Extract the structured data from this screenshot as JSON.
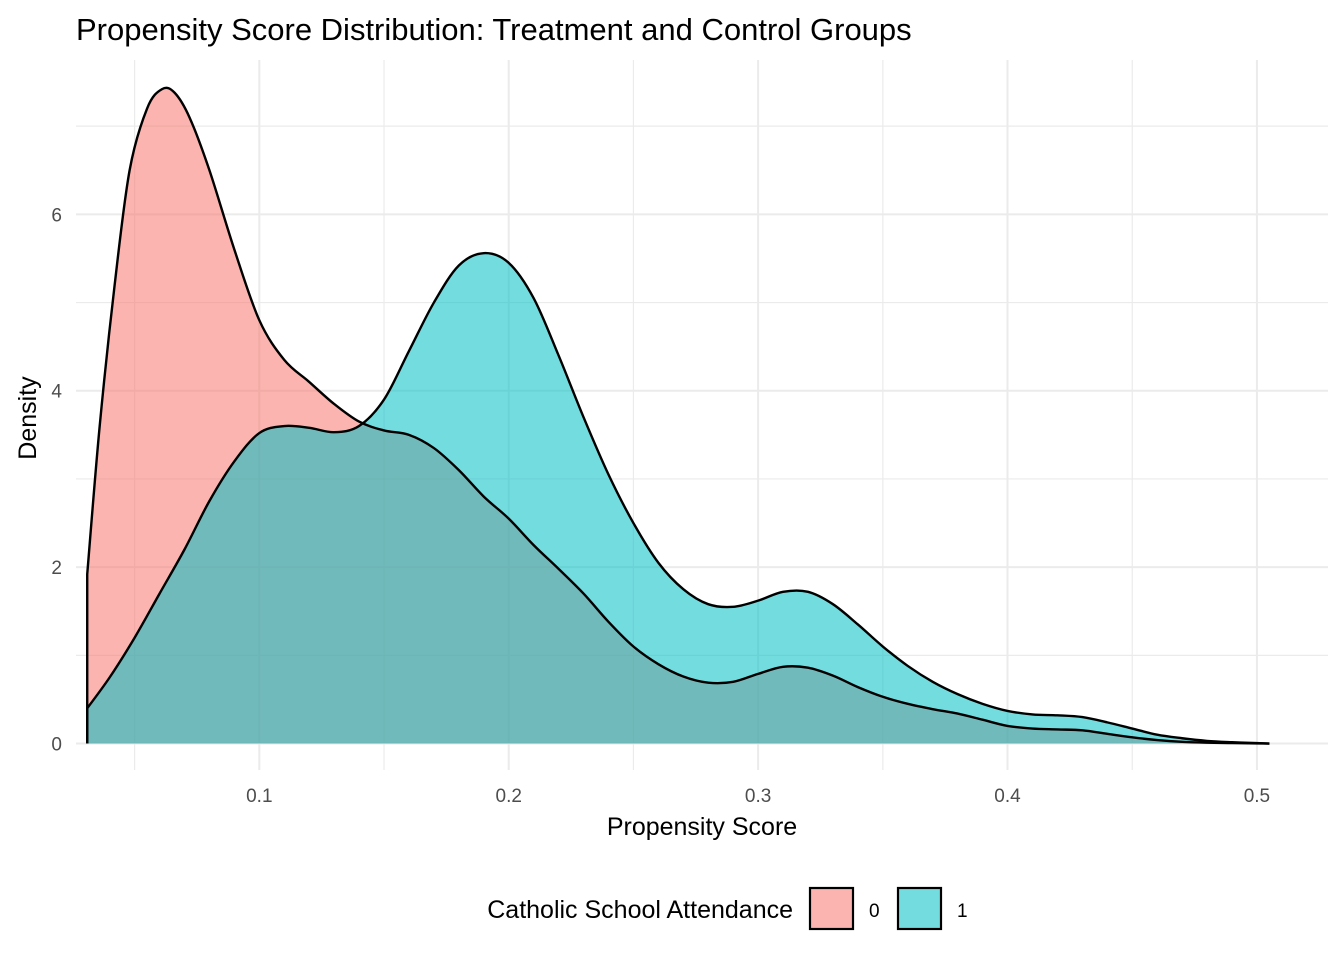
{
  "chart_data": {
    "type": "area",
    "title": "Propensity Score Distribution: Treatment and Control Groups",
    "xlabel": "Propensity Score",
    "ylabel": "Density",
    "xlim": [
      0.0265,
      0.5285
    ],
    "ylim": [
      -0.3,
      7.75
    ],
    "x_ticks": [
      0.1,
      0.2,
      0.3,
      0.4,
      0.5
    ],
    "x_tick_labels": [
      "0.1",
      "0.2",
      "0.3",
      "0.4",
      "0.5"
    ],
    "y_ticks": [
      0,
      2,
      4,
      6
    ],
    "y_tick_labels": [
      "0",
      "2",
      "4",
      "6"
    ],
    "grid": true,
    "legend": {
      "title": "Catholic School Attendance",
      "position": "bottom"
    },
    "series": [
      {
        "name": "0",
        "color": "#F8766D",
        "points": [
          [
            0.031,
            1.92
          ],
          [
            0.036,
            3.6
          ],
          [
            0.042,
            5.2
          ],
          [
            0.048,
            6.5
          ],
          [
            0.055,
            7.2
          ],
          [
            0.061,
            7.42
          ],
          [
            0.066,
            7.38
          ],
          [
            0.072,
            7.1
          ],
          [
            0.08,
            6.5
          ],
          [
            0.09,
            5.6
          ],
          [
            0.1,
            4.8
          ],
          [
            0.11,
            4.35
          ],
          [
            0.12,
            4.1
          ],
          [
            0.13,
            3.85
          ],
          [
            0.14,
            3.65
          ],
          [
            0.15,
            3.55
          ],
          [
            0.16,
            3.5
          ],
          [
            0.17,
            3.35
          ],
          [
            0.18,
            3.1
          ],
          [
            0.19,
            2.8
          ],
          [
            0.2,
            2.55
          ],
          [
            0.21,
            2.25
          ],
          [
            0.22,
            1.98
          ],
          [
            0.23,
            1.7
          ],
          [
            0.24,
            1.38
          ],
          [
            0.25,
            1.1
          ],
          [
            0.26,
            0.9
          ],
          [
            0.27,
            0.76
          ],
          [
            0.28,
            0.69
          ],
          [
            0.29,
            0.7
          ],
          [
            0.3,
            0.79
          ],
          [
            0.31,
            0.87
          ],
          [
            0.32,
            0.86
          ],
          [
            0.33,
            0.77
          ],
          [
            0.34,
            0.64
          ],
          [
            0.35,
            0.53
          ],
          [
            0.36,
            0.45
          ],
          [
            0.37,
            0.39
          ],
          [
            0.38,
            0.34
          ],
          [
            0.39,
            0.27
          ],
          [
            0.4,
            0.2
          ],
          [
            0.41,
            0.17
          ],
          [
            0.42,
            0.16
          ],
          [
            0.43,
            0.15
          ],
          [
            0.44,
            0.11
          ],
          [
            0.45,
            0.07
          ],
          [
            0.46,
            0.04
          ],
          [
            0.47,
            0.02
          ],
          [
            0.48,
            0.01
          ],
          [
            0.49,
            0.005
          ],
          [
            0.5,
            0.002
          ],
          [
            0.505,
            0.0
          ]
        ]
      },
      {
        "name": "1",
        "color": "#00BFC4",
        "points": [
          [
            0.031,
            0.4
          ],
          [
            0.04,
            0.75
          ],
          [
            0.05,
            1.2
          ],
          [
            0.06,
            1.7
          ],
          [
            0.07,
            2.2
          ],
          [
            0.08,
            2.75
          ],
          [
            0.09,
            3.2
          ],
          [
            0.1,
            3.52
          ],
          [
            0.11,
            3.6
          ],
          [
            0.12,
            3.58
          ],
          [
            0.13,
            3.53
          ],
          [
            0.14,
            3.6
          ],
          [
            0.15,
            3.9
          ],
          [
            0.16,
            4.45
          ],
          [
            0.17,
            5.0
          ],
          [
            0.18,
            5.42
          ],
          [
            0.19,
            5.56
          ],
          [
            0.2,
            5.45
          ],
          [
            0.21,
            5.05
          ],
          [
            0.22,
            4.4
          ],
          [
            0.23,
            3.7
          ],
          [
            0.24,
            3.05
          ],
          [
            0.25,
            2.5
          ],
          [
            0.26,
            2.05
          ],
          [
            0.27,
            1.75
          ],
          [
            0.28,
            1.58
          ],
          [
            0.29,
            1.55
          ],
          [
            0.3,
            1.62
          ],
          [
            0.31,
            1.72
          ],
          [
            0.32,
            1.72
          ],
          [
            0.33,
            1.58
          ],
          [
            0.34,
            1.35
          ],
          [
            0.35,
            1.1
          ],
          [
            0.36,
            0.88
          ],
          [
            0.37,
            0.7
          ],
          [
            0.38,
            0.56
          ],
          [
            0.39,
            0.45
          ],
          [
            0.4,
            0.37
          ],
          [
            0.41,
            0.33
          ],
          [
            0.42,
            0.32
          ],
          [
            0.43,
            0.3
          ],
          [
            0.44,
            0.24
          ],
          [
            0.45,
            0.17
          ],
          [
            0.46,
            0.1
          ],
          [
            0.47,
            0.06
          ],
          [
            0.48,
            0.03
          ],
          [
            0.49,
            0.015
          ],
          [
            0.5,
            0.005
          ],
          [
            0.505,
            0.0
          ]
        ]
      }
    ]
  }
}
